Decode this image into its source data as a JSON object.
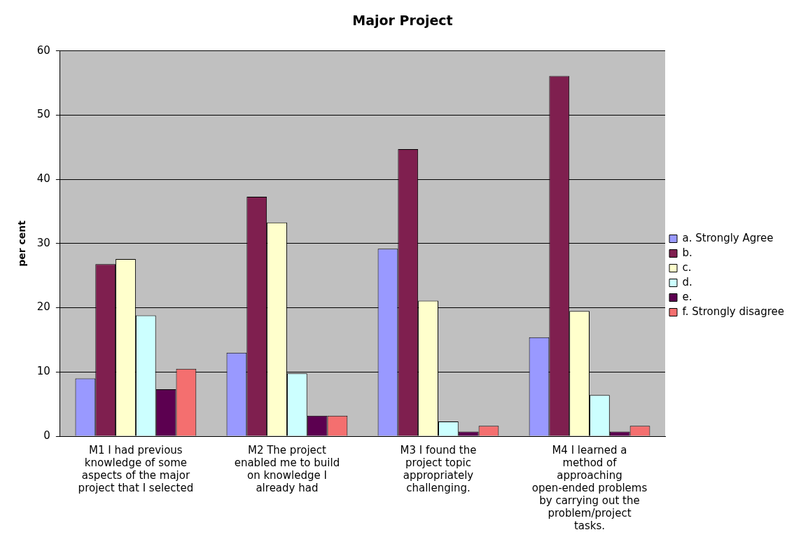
{
  "chart_data": {
    "type": "bar",
    "title": "Major Project",
    "ylabel": "per cent",
    "categories": [
      "M1 I had previous knowledge of some aspects of the major project that I selected",
      "M2 The project enabled me to build on knowledge I already had",
      "M3 I found the project topic appropriately challenging.",
      "M4 I learned a method of approaching open-ended problems by carrying out the problem/project tasks."
    ],
    "series": [
      {
        "name": "a. Strongly Agree",
        "color": "#9999ff",
        "values": [
          9,
          13,
          29.2,
          15.4
        ]
      },
      {
        "name": "b.",
        "color": "#7f1f4f",
        "values": [
          26.8,
          37.3,
          44.7,
          56.1
        ]
      },
      {
        "name": "c.",
        "color": "#ffffcc",
        "values": [
          27.6,
          33.3,
          21.1,
          19.5
        ]
      },
      {
        "name": "d.",
        "color": "#ccffff",
        "values": [
          18.8,
          9.8,
          2.3,
          6.4
        ]
      },
      {
        "name": "e.",
        "color": "#5c0050",
        "values": [
          7.3,
          3.2,
          0.7,
          0.7
        ]
      },
      {
        "name": "f. Strongly disagree",
        "color": "#f46f6f",
        "values": [
          10.5,
          3.2,
          1.6,
          1.6
        ]
      }
    ],
    "ylim": [
      0,
      60
    ],
    "yticks": [
      0,
      10,
      20,
      30,
      40,
      50,
      60
    ],
    "grid": "y",
    "legend": "right"
  }
}
